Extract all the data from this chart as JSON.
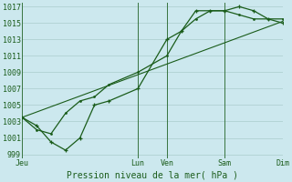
{
  "title": "Pression niveau de la mer( hPa )",
  "bg_color": "#cce8ee",
  "grid_color": "#aacccc",
  "line_color": "#1a5c1a",
  "ylim": [
    998.5,
    1017.5
  ],
  "yticks": [
    999,
    1001,
    1003,
    1005,
    1007,
    1009,
    1011,
    1013,
    1015,
    1017
  ],
  "xtick_labels": [
    "Jeu",
    "Lun",
    "Ven",
    "Sam",
    "Dim"
  ],
  "xtick_positions": [
    0,
    4,
    5,
    7,
    9
  ],
  "xlim": [
    0,
    9
  ],
  "series1_x": [
    0,
    0.5,
    1.0,
    1.5,
    2.0,
    2.5,
    3.0,
    4.0,
    5.0,
    5.5,
    6.0,
    6.5,
    7.0,
    7.5,
    8.0,
    8.5,
    9.0
  ],
  "series1_y": [
    1003.5,
    1002.5,
    1000.5,
    999.5,
    1001.0,
    1005.0,
    1005.5,
    1007.0,
    1013.0,
    1014.0,
    1016.5,
    1016.5,
    1016.5,
    1017.0,
    1016.5,
    1015.5,
    1015.0
  ],
  "series2_x": [
    0,
    0.5,
    1.0,
    1.5,
    2.0,
    2.5,
    3.0,
    4.0,
    5.0,
    5.5,
    6.0,
    6.5,
    7.0,
    7.5,
    8.0,
    8.5,
    9.0
  ],
  "series2_y": [
    1003.5,
    1002.0,
    1001.5,
    1004.0,
    1005.5,
    1006.0,
    1007.5,
    1009.0,
    1011.0,
    1014.0,
    1015.5,
    1016.5,
    1016.5,
    1016.0,
    1015.5,
    1015.5,
    1015.5
  ],
  "series3_x": [
    0,
    9.0
  ],
  "series3_y": [
    1003.5,
    1015.2
  ],
  "vline_positions": [
    0,
    4,
    5,
    7,
    9
  ],
  "title_fontsize": 7,
  "tick_fontsize": 6
}
